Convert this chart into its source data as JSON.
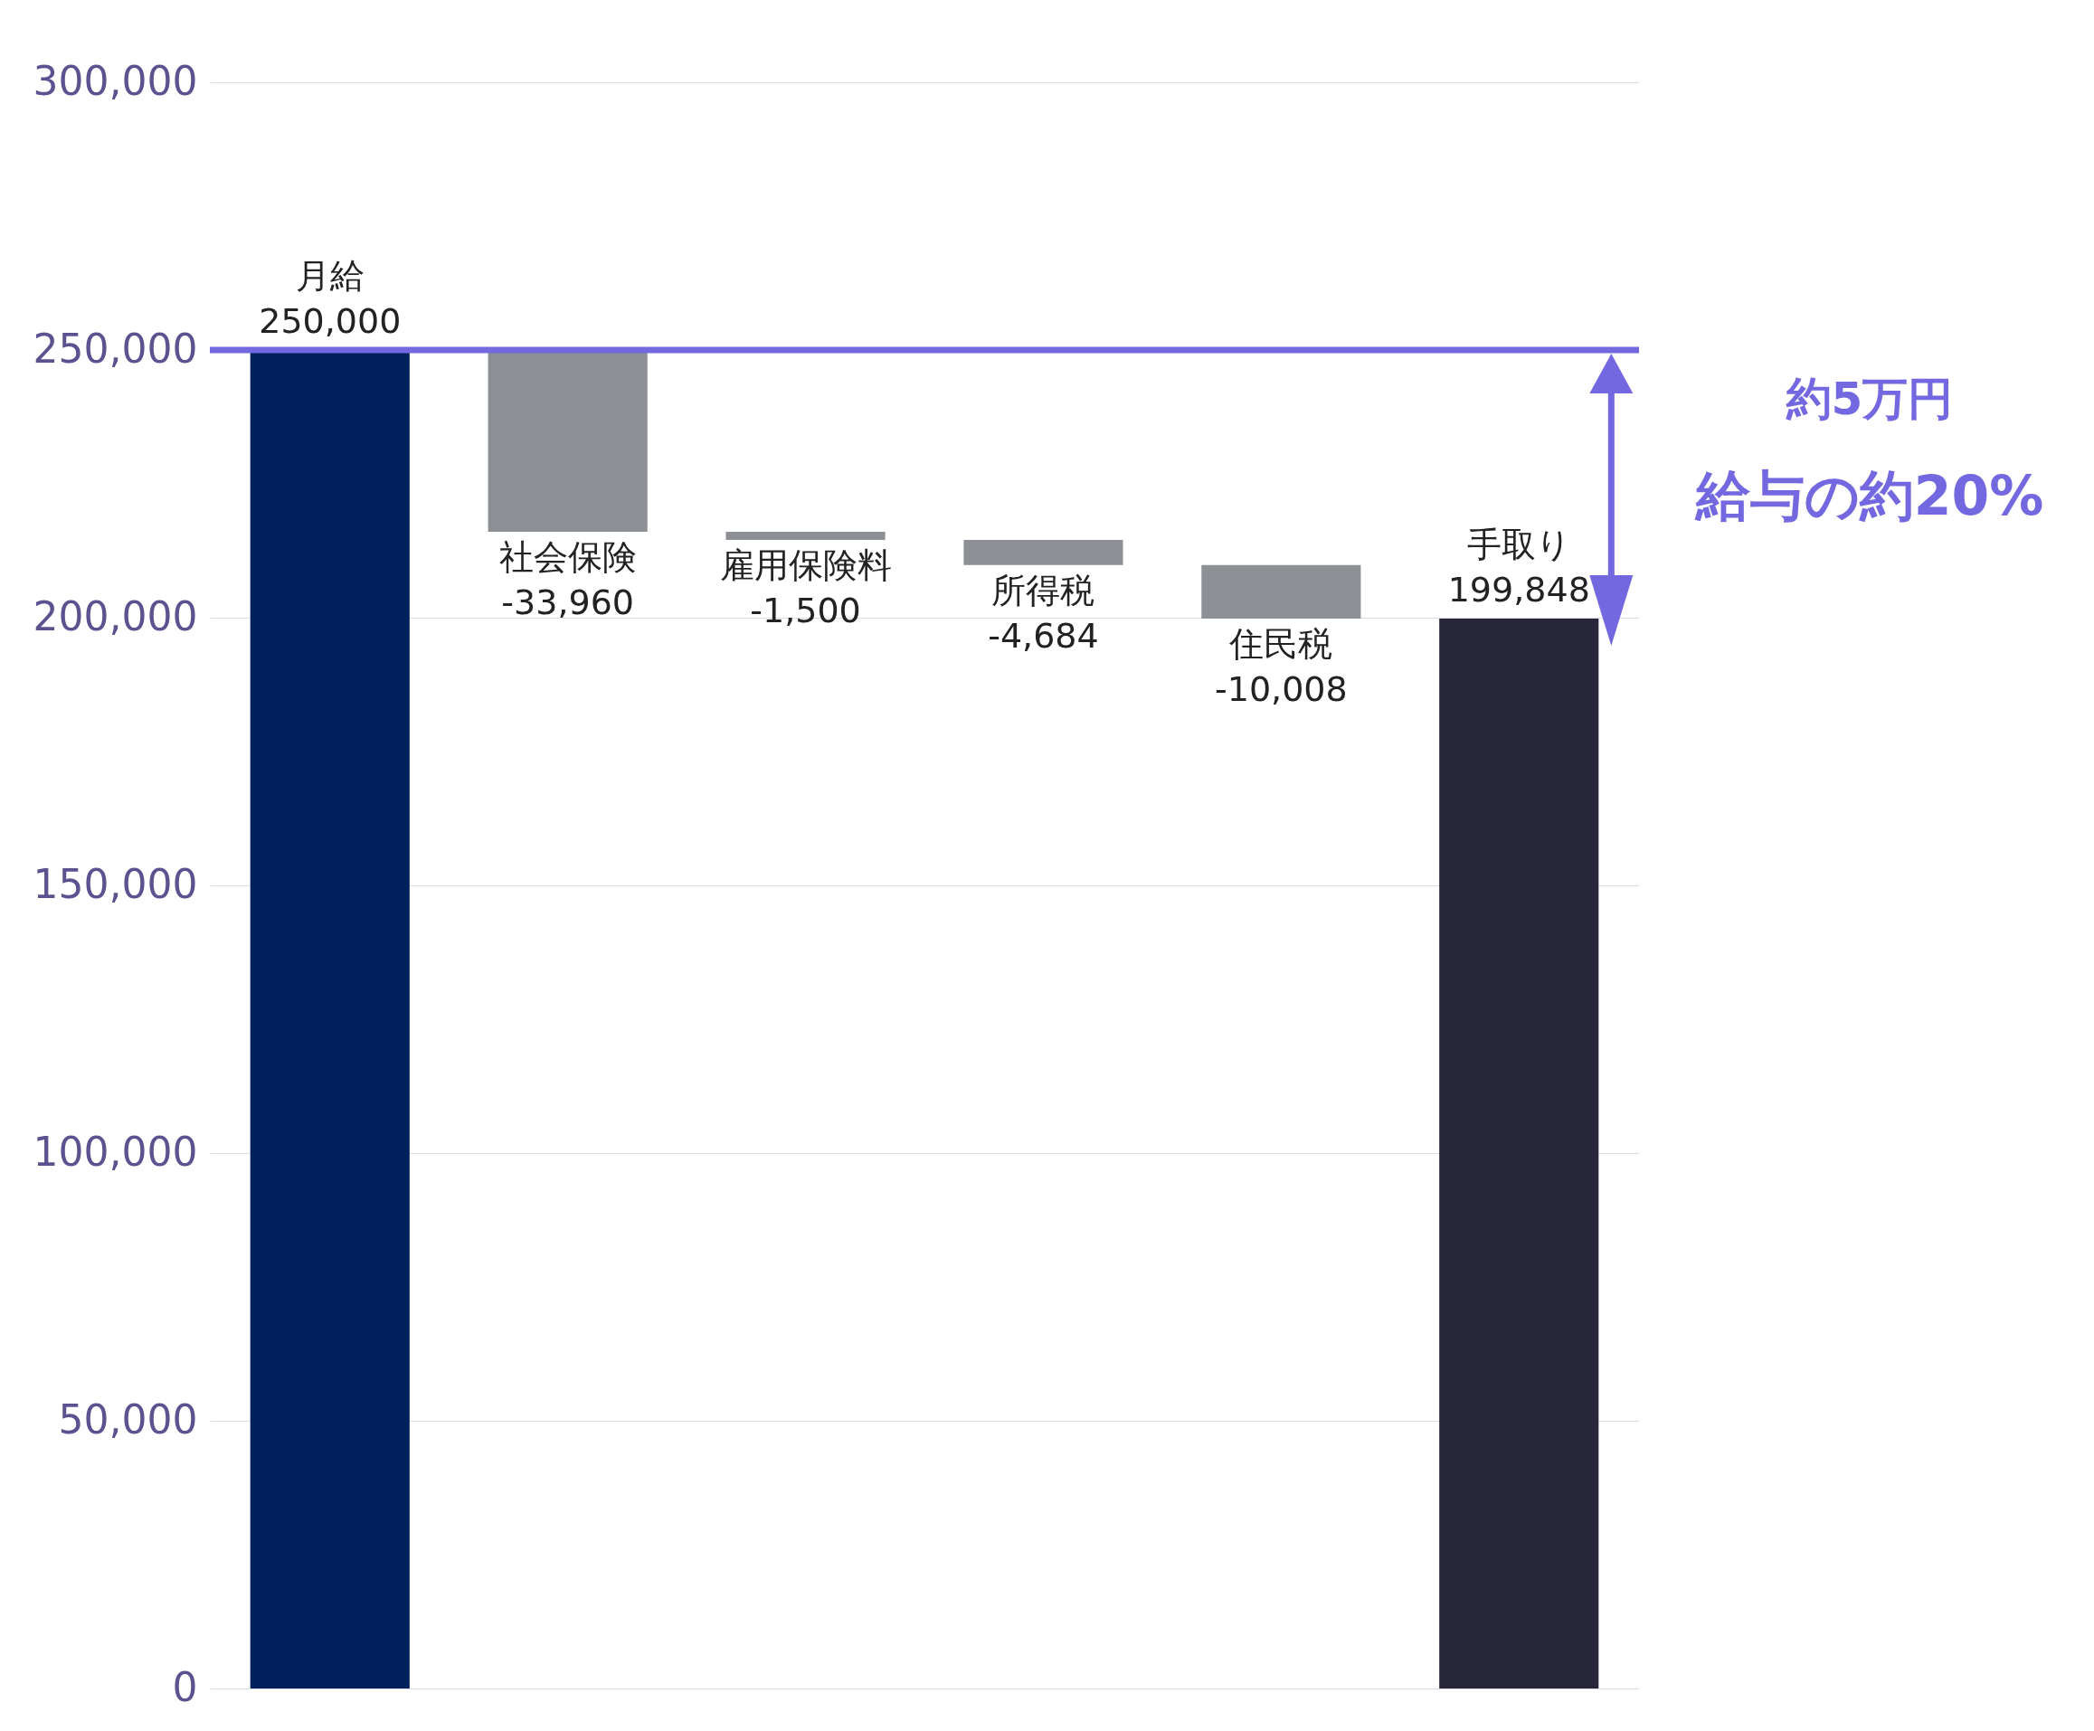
{
  "chart_data": {
    "type": "bar",
    "categories": [
      "月給",
      "社会保険",
      "雇用保険料",
      "所得税",
      "住民税",
      "手取り"
    ],
    "values": [
      250000,
      -33960,
      -1500,
      -4684,
      -10008,
      199848
    ],
    "base": [
      0,
      250000,
      216040,
      214540,
      209856,
      0
    ],
    "colors": [
      "#00205c",
      "#8c8f93",
      "#8c8f93",
      "#8c8f93",
      "#8c8f93",
      "#28263a"
    ],
    "value_labels": [
      "250,000",
      "-33,960",
      "-1,500",
      "-4,684",
      "-10,008",
      "199,848"
    ],
    "ylim": [
      0,
      300000
    ],
    "yticks": [
      0,
      {
        "value": 50000,
        "label": "50,000"
      },
      {
        "value": 100000,
        "label": "100,000"
      },
      {
        "value": 150000,
        "label": "150,000"
      },
      {
        "value": 200000,
        "label": "200,000"
      },
      {
        "value": 250000,
        "label": "250,000"
      },
      {
        "value": 300000,
        "label": "300,000"
      }
    ],
    "grid": "y",
    "tick_labels": "y",
    "ref_lines": [
      {
        "axis": "y",
        "value": 250000,
        "color": "#7468e0"
      }
    ],
    "annotations": [
      "約5万円",
      "給与の約20%"
    ]
  }
}
